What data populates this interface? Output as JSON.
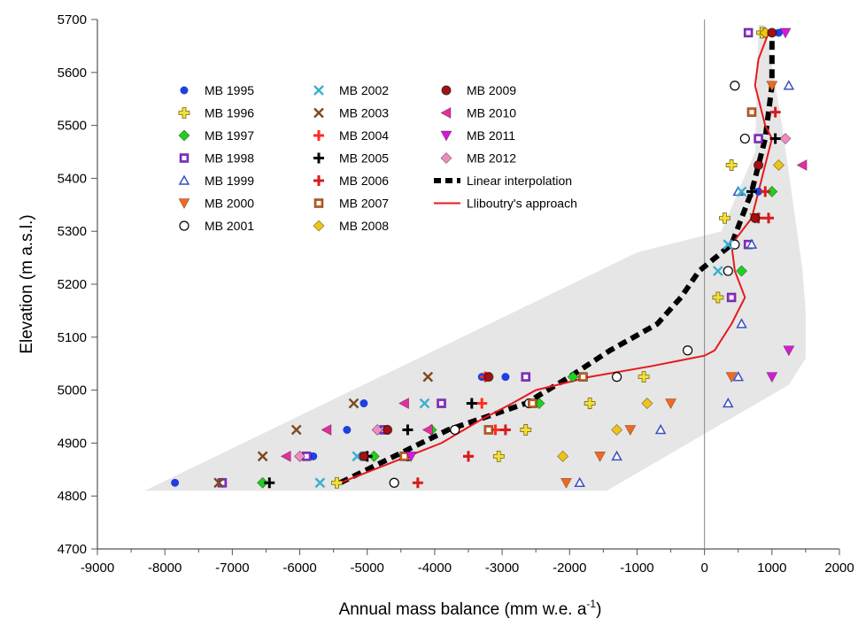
{
  "chart_data": {
    "type": "scatter",
    "title": "",
    "xlabel": "Annual mass balance (mm w.e. a",
    "xlabel_sup": "-1",
    "xlabel_close": ")",
    "ylabel": "Elevation (m a.s.l.)",
    "xlim": [
      -9000,
      2000
    ],
    "ylim": [
      4700,
      5700
    ],
    "x_ticks": [
      -9000,
      -8000,
      -7000,
      -6000,
      -5000,
      -4000,
      -3000,
      -2000,
      -1000,
      0,
      1000,
      2000
    ],
    "y_ticks": [
      4700,
      4800,
      4900,
      5000,
      5100,
      5200,
      5300,
      5400,
      5500,
      5600,
      5700
    ],
    "x_tick_labels": [
      "-9000",
      "-8000",
      "-7000",
      "-6000",
      "-5000",
      "-4000",
      "-3000",
      "-2000",
      "-1000",
      "0",
      "1000",
      "2000"
    ],
    "y_tick_labels": [
      "4700",
      "4800",
      "4900",
      "5000",
      "5100",
      "5200",
      "5300",
      "5400",
      "5500",
      "5600",
      "5700"
    ],
    "zero_line_x": 0,
    "legend_position": "upper-left-inside",
    "envelope": {
      "color": "#e6e6e6",
      "polygon": [
        [
          -8300,
          4810
        ],
        [
          -1450,
          4810
        ],
        [
          1250,
          5010
        ],
        [
          1500,
          5060
        ],
        [
          1500,
          5150
        ],
        [
          1450,
          5230
        ],
        [
          1150,
          5500
        ],
        [
          900,
          5690
        ],
        [
          800,
          5690
        ],
        [
          750,
          5450
        ],
        [
          250,
          5300
        ],
        [
          -1000,
          5260
        ],
        [
          -8300,
          4810
        ]
      ]
    },
    "series": [
      {
        "name": "MB 1995",
        "marker": "dot",
        "color": "#1f3fe0",
        "points": [
          [
            -7850,
            4825
          ],
          [
            -5800,
            4875
          ],
          [
            -5300,
            4925
          ],
          [
            -5050,
            4975
          ],
          [
            -3300,
            5025
          ],
          [
            -2950,
            5025
          ],
          [
            800,
            5375
          ],
          [
            1000,
            5675
          ],
          [
            1100,
            5675
          ]
        ]
      },
      {
        "name": "MB 1996",
        "marker": "plus",
        "color": "#f2e03a",
        "points": [
          [
            -5450,
            4825
          ],
          [
            -3050,
            4875
          ],
          [
            -2650,
            4925
          ],
          [
            -1700,
            4975
          ],
          [
            -900,
            5025
          ],
          [
            300,
            5325
          ],
          [
            200,
            5175
          ],
          [
            400,
            5425
          ],
          [
            850,
            5675
          ]
        ]
      },
      {
        "name": "MB 1997",
        "marker": "diamond",
        "color": "#1ed11e",
        "points": [
          [
            -6550,
            4825
          ],
          [
            -4900,
            4875
          ],
          [
            -4050,
            4925
          ],
          [
            -2450,
            4975
          ],
          [
            -1950,
            5025
          ],
          [
            550,
            5225
          ],
          [
            1000,
            5375
          ],
          [
            900,
            5675
          ]
        ]
      },
      {
        "name": "MB 1998",
        "marker": "squaredot",
        "color": "#8a2bd4",
        "points": [
          [
            -7150,
            4825
          ],
          [
            -5900,
            4875
          ],
          [
            -4750,
            4925
          ],
          [
            -3900,
            4975
          ],
          [
            -2650,
            5025
          ],
          [
            400,
            5175
          ],
          [
            650,
            5275
          ],
          [
            800,
            5475
          ],
          [
            650,
            5675
          ]
        ]
      },
      {
        "name": "MB 1999",
        "marker": "triangle",
        "color": "#3a4fc4",
        "points": [
          [
            -1850,
            4825
          ],
          [
            -1300,
            4875
          ],
          [
            -650,
            4925
          ],
          [
            350,
            4975
          ],
          [
            500,
            5025
          ],
          [
            550,
            5125
          ],
          [
            700,
            5275
          ],
          [
            500,
            5375
          ],
          [
            1250,
            5575
          ]
        ]
      },
      {
        "name": "MB 2000",
        "marker": "tridown",
        "color": "#ee6a22",
        "points": [
          [
            -2050,
            4825
          ],
          [
            -1550,
            4875
          ],
          [
            -1100,
            4925
          ],
          [
            -500,
            4975
          ],
          [
            400,
            5025
          ],
          [
            750,
            5325
          ],
          [
            1000,
            5575
          ]
        ]
      },
      {
        "name": "MB 2001",
        "marker": "circle",
        "color": "#000000",
        "points": [
          [
            -4600,
            4825
          ],
          [
            -4400,
            4875
          ],
          [
            -3700,
            4925
          ],
          [
            -2600,
            4975
          ],
          [
            -1300,
            5025
          ],
          [
            -250,
            5075
          ],
          [
            350,
            5225
          ],
          [
            450,
            5275
          ],
          [
            600,
            5475
          ],
          [
            450,
            5575
          ]
        ]
      },
      {
        "name": "MB 2002",
        "marker": "x",
        "color": "#3aaed0",
        "points": [
          [
            -5700,
            4825
          ],
          [
            -5150,
            4875
          ],
          [
            -4150,
            4975
          ],
          [
            200,
            5225
          ],
          [
            350,
            5275
          ],
          [
            550,
            5375
          ]
        ]
      },
      {
        "name": "MB 2003",
        "marker": "x",
        "color": "#7a4a22",
        "points": [
          [
            -7200,
            4825
          ],
          [
            -6550,
            4875
          ],
          [
            -6050,
            4925
          ],
          [
            -5200,
            4975
          ],
          [
            -4100,
            5025
          ]
        ]
      },
      {
        "name": "MB 2004",
        "marker": "plus",
        "color": "#ff2d20",
        "points": [
          [
            -3500,
            4875
          ],
          [
            -3100,
            4925
          ],
          [
            -3300,
            4975
          ],
          [
            -3250,
            5025
          ]
        ]
      },
      {
        "name": "MB 2005",
        "marker": "plus",
        "color": "#000000",
        "points": [
          [
            -6450,
            4825
          ],
          [
            -5000,
            4875
          ],
          [
            -4400,
            4925
          ],
          [
            -3450,
            4975
          ],
          [
            700,
            5375
          ],
          [
            1050,
            5475
          ]
        ]
      },
      {
        "name": "MB 2006",
        "marker": "plus",
        "color": "#d61c1c",
        "points": [
          [
            -4250,
            4825
          ],
          [
            -3500,
            4875
          ],
          [
            -2950,
            4925
          ],
          [
            950,
            5325
          ],
          [
            800,
            5325
          ],
          [
            900,
            5375
          ],
          [
            1050,
            5525
          ]
        ]
      },
      {
        "name": "MB 2007",
        "marker": "squaredot",
        "color": "#c25b1e",
        "points": [
          [
            -4450,
            4875
          ],
          [
            -3200,
            4925
          ],
          [
            -2550,
            4975
          ],
          [
            -1800,
            5025
          ],
          [
            700,
            5525
          ]
        ]
      },
      {
        "name": "MB 2008",
        "marker": "diamond",
        "color": "#f0c414",
        "points": [
          [
            -2100,
            4875
          ],
          [
            -1300,
            4925
          ],
          [
            -850,
            4975
          ],
          [
            1100,
            5425
          ],
          [
            900,
            5675
          ]
        ]
      },
      {
        "name": "MB 2009",
        "marker": "circle",
        "color": "#a51010",
        "points": [
          [
            -5050,
            4875
          ],
          [
            -4700,
            4925
          ],
          [
            -3200,
            5025
          ],
          [
            750,
            5325
          ],
          [
            800,
            5425
          ],
          [
            1000,
            5675
          ]
        ]
      },
      {
        "name": "MB 2010",
        "marker": "triangleleft",
        "color": "#e0309a",
        "points": [
          [
            -6200,
            4875
          ],
          [
            -5600,
            4925
          ],
          [
            -4450,
            4975
          ],
          [
            -4100,
            4925
          ],
          [
            1450,
            5425
          ]
        ]
      },
      {
        "name": "MB 2011",
        "marker": "tridown",
        "color": "#d21cd2",
        "points": [
          [
            -4350,
            4875
          ],
          [
            1000,
            5025
          ],
          [
            1250,
            5075
          ],
          [
            1200,
            5675
          ]
        ]
      },
      {
        "name": "MB 2012",
        "marker": "diamond",
        "color": "#f18ac4",
        "points": [
          [
            -6000,
            4875
          ],
          [
            -4850,
            4925
          ],
          [
            1200,
            5475
          ]
        ]
      }
    ],
    "lines": [
      {
        "name": "Linear interpolation",
        "style": "dashed",
        "color": "#000000",
        "points": [
          [
            -5400,
            4825
          ],
          [
            -3800,
            4925
          ],
          [
            -2650,
            4975
          ],
          [
            -2000,
            5025
          ],
          [
            -1400,
            5075
          ],
          [
            -700,
            5125
          ],
          [
            -350,
            5175
          ],
          [
            -80,
            5225
          ],
          [
            400,
            5275
          ],
          [
            550,
            5325
          ],
          [
            700,
            5375
          ],
          [
            800,
            5425
          ],
          [
            900,
            5475
          ],
          [
            950,
            5525
          ],
          [
            1000,
            5575
          ],
          [
            1000,
            5625
          ],
          [
            1000,
            5675
          ]
        ]
      },
      {
        "name": "Lliboutry's approach",
        "style": "solid",
        "color": "#e8181e",
        "points": [
          [
            -5400,
            4825
          ],
          [
            -5200,
            4835
          ],
          [
            -4700,
            4860
          ],
          [
            -3900,
            4900
          ],
          [
            -3300,
            4945
          ],
          [
            -2850,
            4975
          ],
          [
            -2500,
            5000
          ],
          [
            -1700,
            5025
          ],
          [
            -800,
            5045
          ],
          [
            0,
            5065
          ],
          [
            150,
            5075
          ],
          [
            400,
            5125
          ],
          [
            600,
            5175
          ],
          [
            450,
            5225
          ],
          [
            400,
            5275
          ],
          [
            700,
            5325
          ],
          [
            800,
            5375
          ],
          [
            1000,
            5475
          ],
          [
            900,
            5500
          ],
          [
            750,
            5575
          ],
          [
            800,
            5625
          ],
          [
            950,
            5675
          ]
        ]
      }
    ]
  }
}
